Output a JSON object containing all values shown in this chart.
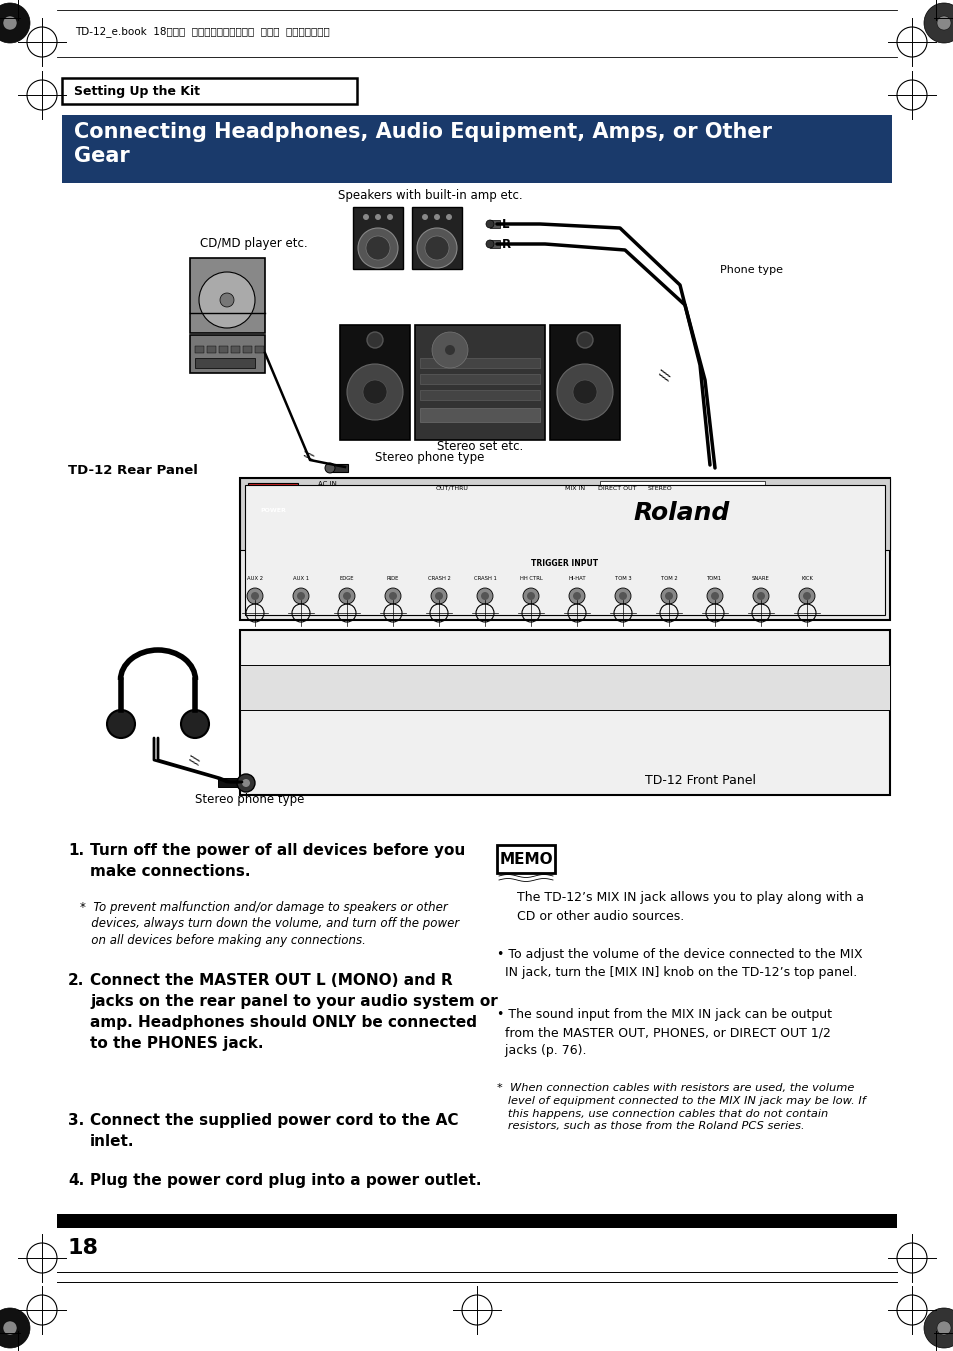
{
  "page_bg": "#ffffff",
  "header_text": "TD-12_e.book  18ページ  ２００５年２月１８日  金曜日  午後６時３９分",
  "section_label": "Setting Up the Kit",
  "title": "Connecting Headphones, Audio Equipment, Amps, or Other\nGear",
  "diagram_label_speakers": "Speakers with built-in amp etc.",
  "diagram_label_cdmd": "CD/MD player etc.",
  "diagram_label_stereo": "Stereo set etc.",
  "diagram_label_stereo_phone": "Stereo phone type",
  "diagram_label_phone": "Phone type",
  "diagram_label_rear": "TD-12 Rear Panel",
  "diagram_label_front": "TD-12 Front Panel",
  "diagram_label_stereo_phone2": "Stereo phone type",
  "step1_num": "1.",
  "step1_bold": "Turn off the power of all devices before you\nmake connections.",
  "step1_note": "*  To prevent malfunction and/or damage to speakers or other\n   devices, always turn down the volume, and turn off the power\n   on all devices before making any connections.",
  "step2_num": "2.",
  "step2_bold": "Connect the MASTER OUT L (MONO) and R\njacks on the rear panel to your audio system or\namp. Headphones should ONLY be connected\nto the PHONES jack.",
  "step3_num": "3.",
  "step3_bold": "Connect the supplied power cord to the AC\ninlet.",
  "step4_num": "4.",
  "step4_bold": "Plug the power cord plug into a power outlet.",
  "memo_title": "MEMO",
  "memo_text1": "The TD-12’s MIX IN jack allows you to play along with a\nCD or other audio sources.",
  "memo_bullet1": "• To adjust the volume of the device connected to the MIX\n  IN jack, turn the [MIX IN] knob on the TD-12’s top panel.",
  "memo_bullet2": "• The sound input from the MIX IN jack can be output\n  from the MASTER OUT, PHONES, or DIRECT OUT 1/2\n  jacks (p. 76).",
  "memo_note": "*  When connection cables with resistors are used, the volume\n   level of equipment connected to the MIX IN jack may be low. If\n   this happens, use connection cables that do not contain\n   resistors, such as those from the Roland PCS series.",
  "page_number": "18",
  "title_bg": "#1a3a6b",
  "title_fg": "#ffffff"
}
